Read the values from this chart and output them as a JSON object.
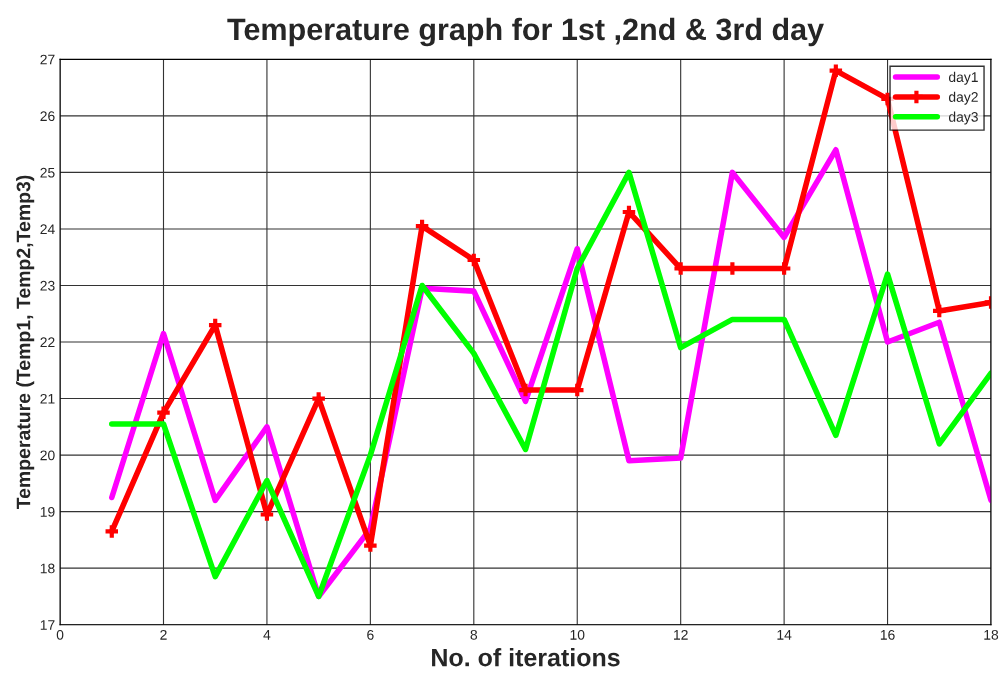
{
  "chart_data": {
    "type": "line",
    "title": "Temperature graph for 1st ,2nd & 3rd day",
    "xlabel": "No. of iterations",
    "ylabel": "Temperature (Temp1, Temp2,Temp3)",
    "x": [
      1,
      2,
      3,
      4,
      5,
      6,
      7,
      8,
      9,
      10,
      11,
      12,
      13,
      14,
      15,
      16,
      17,
      18
    ],
    "series": [
      {
        "name": "day1",
        "color": "#ff00ff",
        "marker": "none",
        "values": [
          19.25,
          22.15,
          19.2,
          20.5,
          17.5,
          18.7,
          22.95,
          22.9,
          20.95,
          23.65,
          19.9,
          19.95,
          25.0,
          23.85,
          25.4,
          22.0,
          22.35,
          19.2
        ]
      },
      {
        "name": "day2",
        "color": "#ff0000",
        "marker": "cross",
        "values": [
          18.65,
          20.75,
          22.3,
          18.95,
          21.0,
          18.4,
          24.05,
          23.45,
          21.15,
          21.15,
          24.3,
          23.3,
          23.3,
          23.3,
          26.8,
          26.3,
          22.55,
          22.7
        ]
      },
      {
        "name": "day3",
        "color": "#00ff00",
        "marker": "none",
        "values": [
          20.55,
          20.55,
          17.85,
          19.55,
          17.5,
          20.0,
          23.0,
          21.8,
          20.1,
          23.3,
          25.0,
          21.9,
          22.4,
          22.4,
          20.35,
          23.2,
          20.2,
          21.45
        ]
      }
    ],
    "xlim": [
      0,
      18
    ],
    "xticks": [
      0,
      2,
      4,
      6,
      8,
      10,
      12,
      14,
      16,
      18
    ],
    "ylim": [
      17,
      27
    ],
    "yticks": [
      17,
      18,
      19,
      20,
      21,
      22,
      23,
      24,
      25,
      26,
      27
    ],
    "grid": true,
    "legend": "top right",
    "line_style": "solid"
  }
}
